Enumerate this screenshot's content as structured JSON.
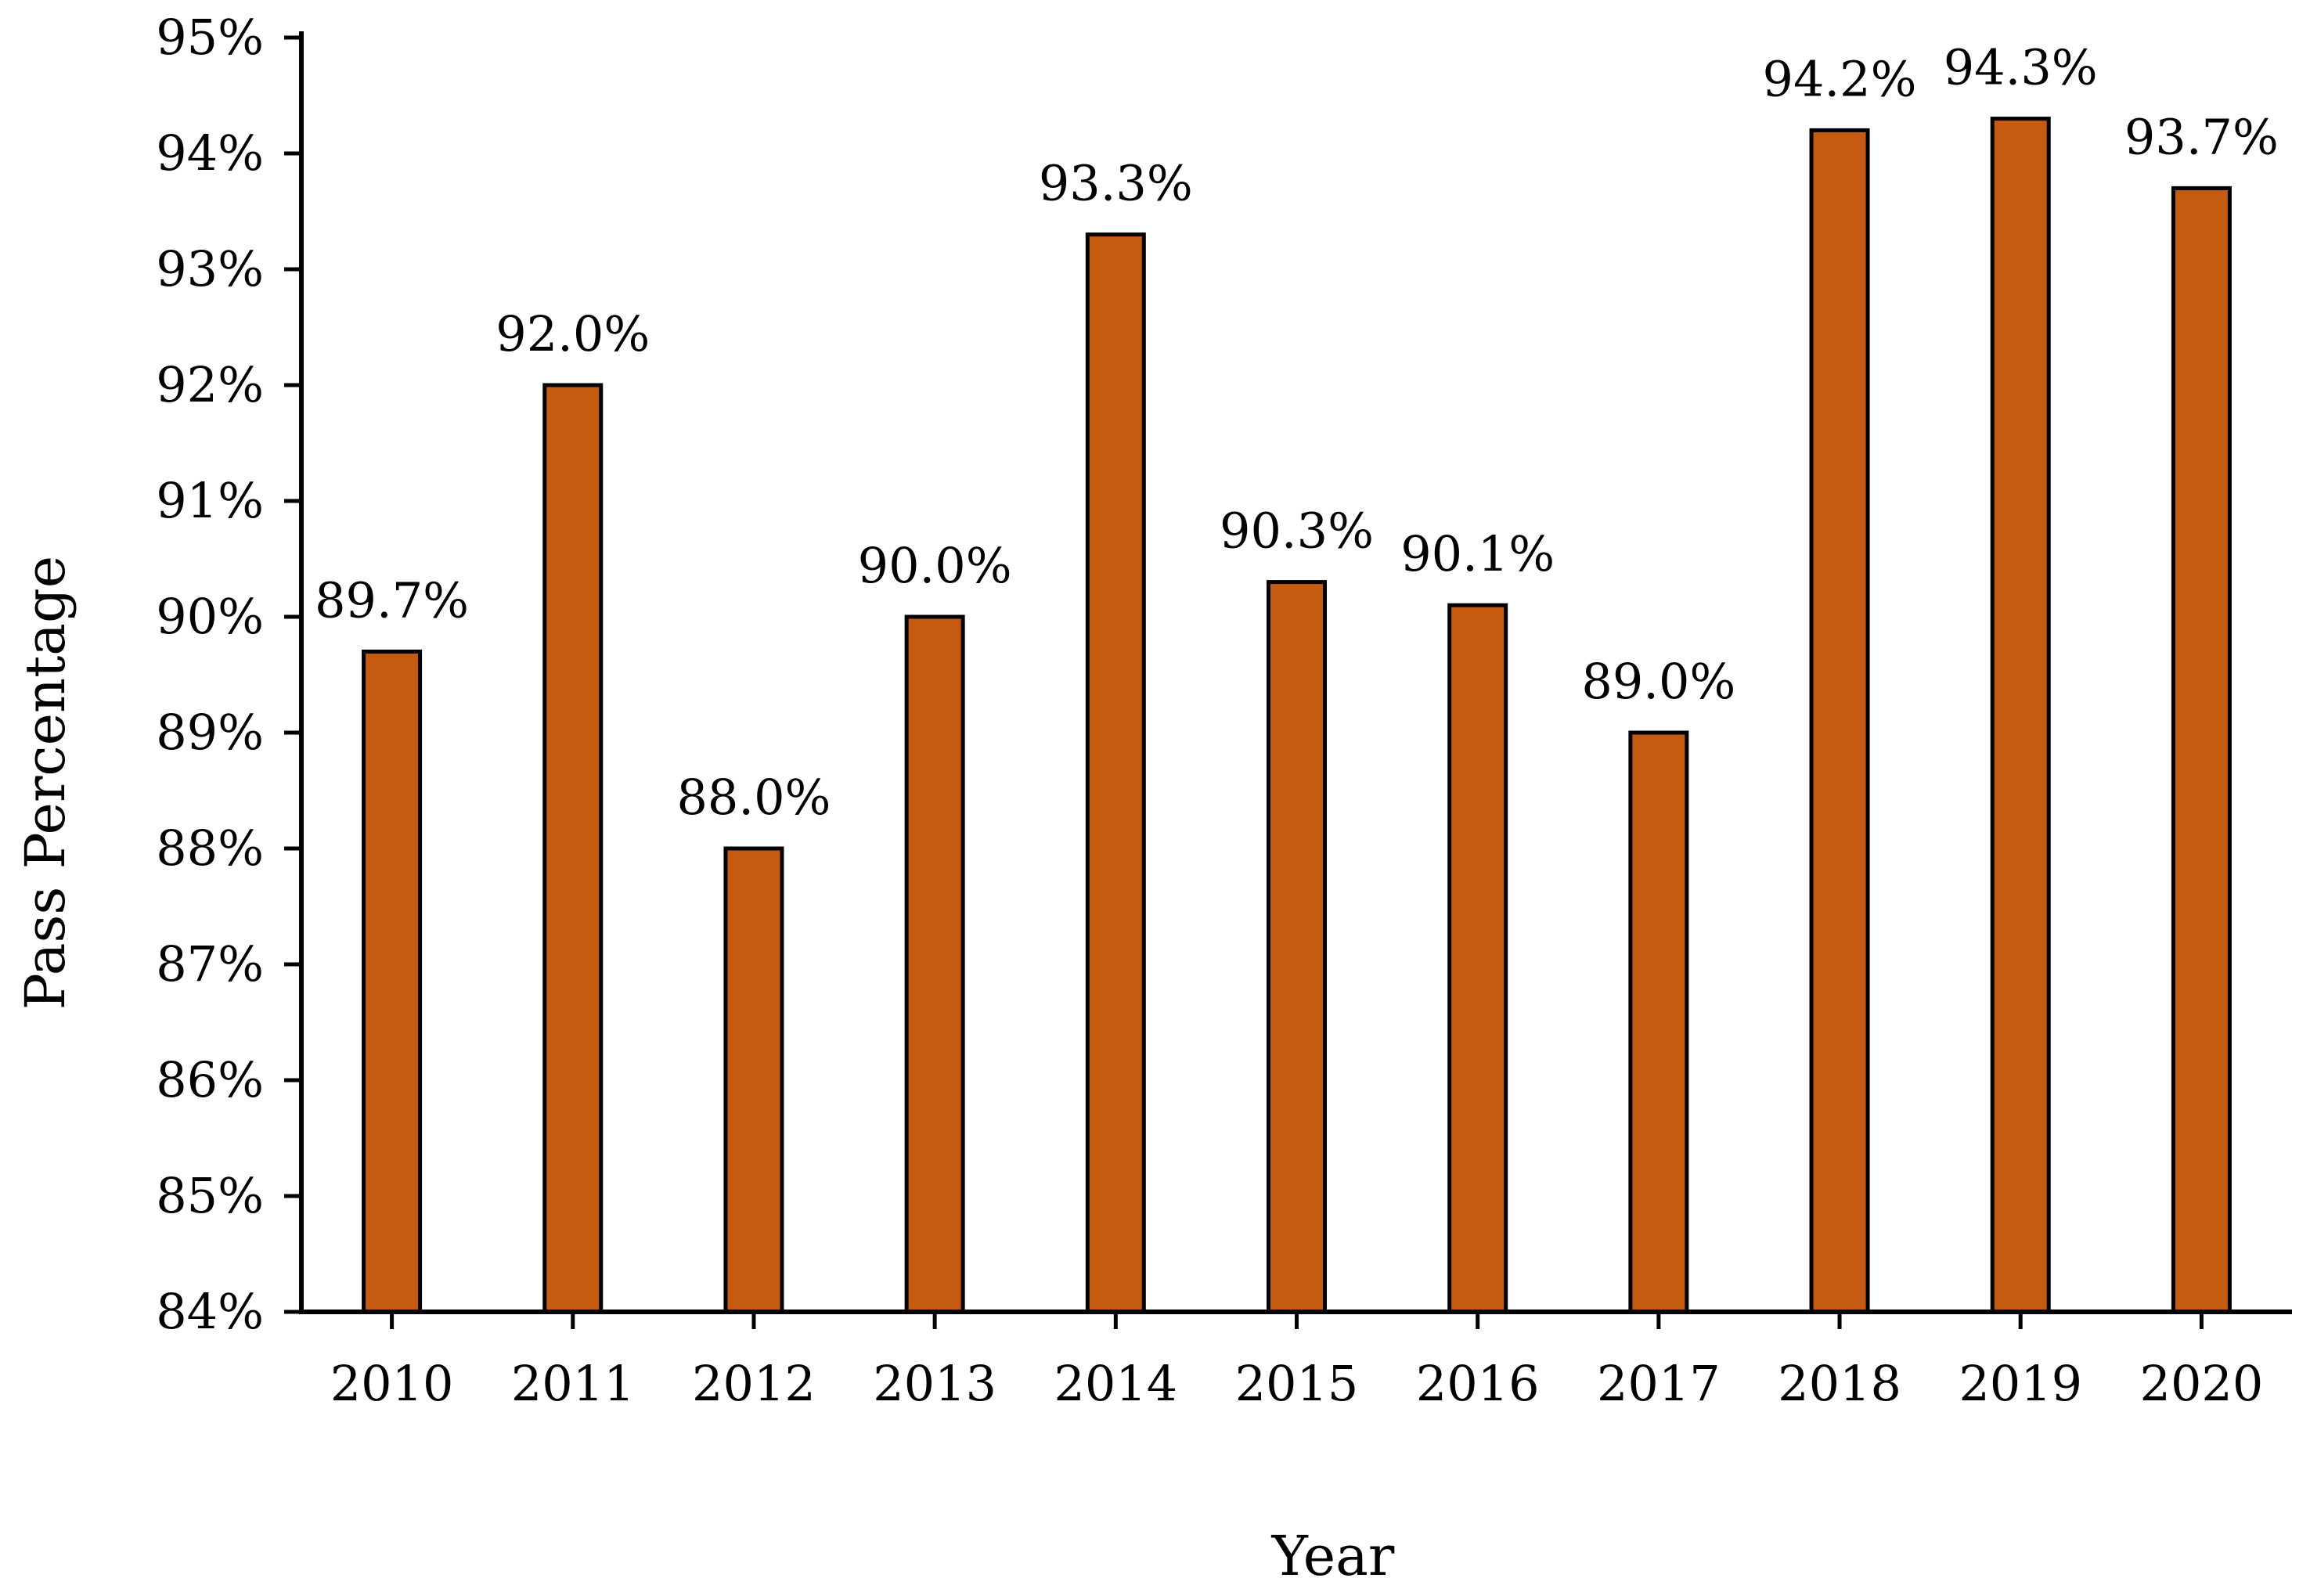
{
  "chart_data": {
    "type": "bar",
    "title": "",
    "xlabel": "Year",
    "ylabel": "Pass Percentage",
    "categories": [
      "2010",
      "2011",
      "2012",
      "2013",
      "2014",
      "2015",
      "2016",
      "2017",
      "2018",
      "2019",
      "2020"
    ],
    "values": [
      89.7,
      92.0,
      88.0,
      90.0,
      93.3,
      90.3,
      90.1,
      89.0,
      94.2,
      94.3,
      93.7
    ],
    "data_labels": [
      "89.7%",
      "92.0%",
      "88.0%",
      "90.0%",
      "93.3%",
      "90.3%",
      "90.1%",
      "89.0%",
      "94.2%",
      "94.3%",
      "93.7%"
    ],
    "ylim": [
      84,
      95
    ],
    "yticks": [
      84,
      85,
      86,
      87,
      88,
      89,
      90,
      91,
      92,
      93,
      94,
      95
    ],
    "ytick_labels": [
      "84%",
      "85%",
      "86%",
      "87%",
      "88%",
      "89%",
      "90%",
      "91%",
      "92%",
      "93%",
      "94%",
      "95%"
    ],
    "grid": false,
    "legend": "none",
    "bar_color": "#C55A11",
    "bar_edge_color": "#000000",
    "axis_color": "#000000"
  }
}
